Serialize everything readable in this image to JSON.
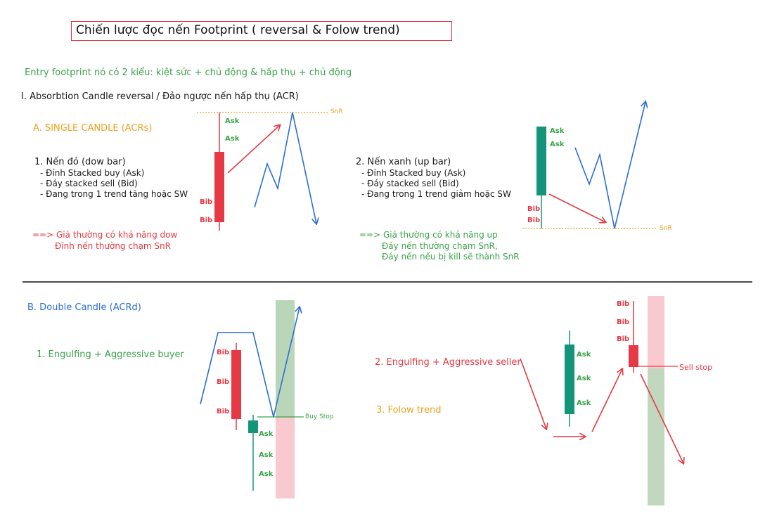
{
  "title": "Chiến lược đọc nến Footprint ( reversal & Folow trend)",
  "intro": "Entry footprint nó có 2 kiểu: kiệt sức + chủ động & hấp thụ + chủ động",
  "section1": {
    "heading": "I. Absorbtion Candle reversal / Đảo ngược nến hấp thụ (ACR)",
    "sub_a": "A. SINGLE CANDLE (ACRs)",
    "snr": "SnR",
    "red_case": {
      "title": "1. Nến đỏ (dow bar)",
      "bullets": [
        "- Đỉnh Stacked buy (Ask)",
        "- Đáy stacked sell (Bid)",
        "- Đang trong 1 trend tăng hoặc SW"
      ],
      "conclusion": [
        "==> Giá thường có khả năng dow",
        "Đỉnh nến thường chạm SnR"
      ],
      "ask_labels": [
        "Ask",
        "Ask"
      ],
      "bid_labels": [
        "Bib",
        "Bib"
      ]
    },
    "green_case": {
      "title": "2. Nến xanh (up bar)",
      "bullets": [
        "- Đỉnh Stacked buy (Ask)",
        "- Đáy stacked sell (Bid)",
        "- Đang trong 1 trend giảm hoặc SW"
      ],
      "conclusion": [
        "==> Giá thường có khả năng up",
        "Đáy nến thường chạm SnR,",
        "Đáy nến nếu bị kill sẽ thành SnR"
      ],
      "ask_labels": [
        "Ask",
        "Ask"
      ],
      "bid_labels": [
        "Bib",
        "Bib"
      ]
    }
  },
  "section2": {
    "sub_b": "B. Double Candle (ACRd)",
    "case1": {
      "title": "1. Engulfing + Aggressive buyer",
      "bid_labels": [
        "Bib",
        "Bib",
        "Bib"
      ],
      "ask_labels": [
        "Ask",
        "Ask",
        "Ask"
      ],
      "stop_label": "Buy Stop"
    },
    "case2": {
      "title": "2. Engulfing + Aggressive seller",
      "ask_labels": [
        "Ask",
        "Ask",
        "Ask"
      ],
      "bid_labels": [
        "Bib",
        "Bib",
        "Bib"
      ],
      "stop_label": "Sell stop"
    },
    "case3": {
      "title": "3. Folow trend"
    }
  },
  "colors": {
    "red": "#e53a45",
    "green": "#14957a",
    "blue": "#2b6dd6",
    "orange": "#f0a020",
    "pink_zone": "#f9c9d0",
    "green_zone": "#b9d7b8",
    "snr_line": "#f0a020"
  }
}
